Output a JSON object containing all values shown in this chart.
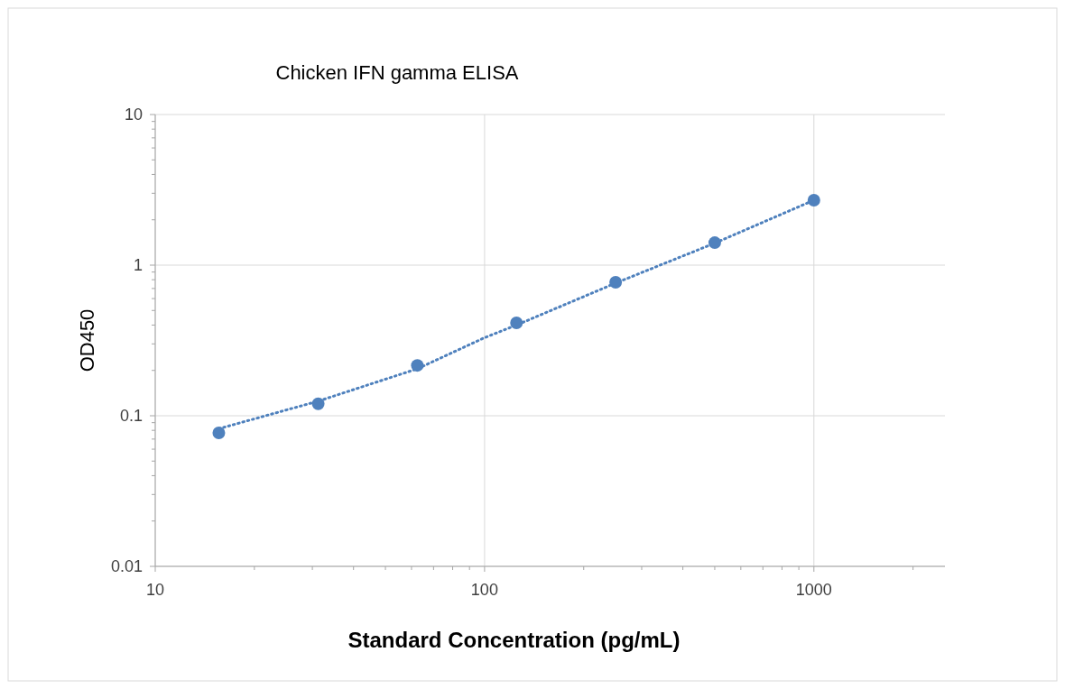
{
  "chart_data": {
    "type": "scatter",
    "title": "Chicken IFN gamma ELISA",
    "xlabel": "Standard Concentration (pg/mL)",
    "ylabel": "OD450",
    "log": "xy",
    "grid": true,
    "marker": "circle",
    "xlim": [
      10,
      2500
    ],
    "xticks": [
      10,
      100,
      1000
    ],
    "ylim": [
      0.01,
      10
    ],
    "yticks": [
      0.01,
      0.1,
      1,
      10
    ],
    "series": [
      {
        "color": "#4f81bd",
        "x": [
          15.6,
          31.25,
          62.5,
          125,
          250,
          500,
          1000
        ],
        "values": [
          0.077,
          0.12,
          0.216,
          0.414,
          0.77,
          1.41,
          2.7
        ]
      },
      {
        "type": "line",
        "color": "#4f81bd",
        "line_style": "dotted",
        "marker": "none",
        "x": [
          15.6,
          31.25,
          62.5,
          100,
          125,
          250,
          500,
          1000
        ],
        "values": [
          0.082,
          0.125,
          0.205,
          0.33,
          0.4,
          0.76,
          1.4,
          2.7
        ]
      }
    ]
  }
}
